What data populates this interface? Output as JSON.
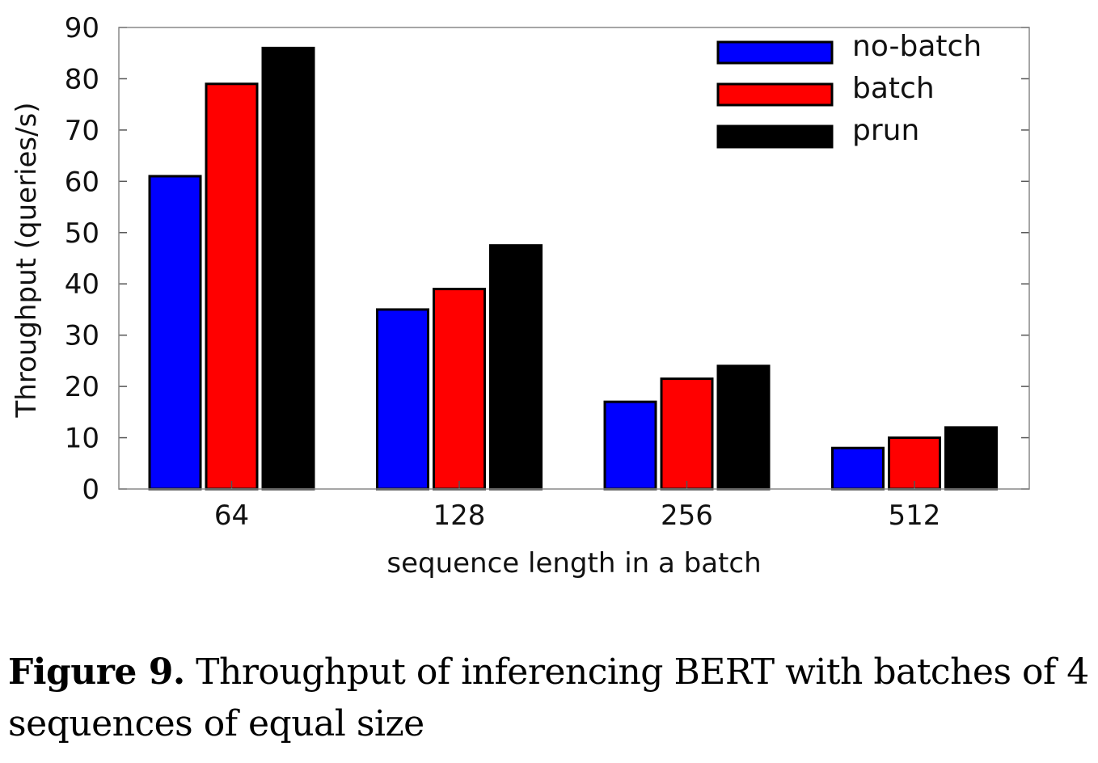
{
  "chart_data": {
    "type": "bar",
    "categories": [
      "64",
      "128",
      "256",
      "512"
    ],
    "series": [
      {
        "name": "no-batch",
        "color": "#0000ff",
        "values": [
          61,
          35,
          17,
          8
        ]
      },
      {
        "name": "batch",
        "color": "#ff0000",
        "values": [
          79,
          39,
          21.5,
          10
        ]
      },
      {
        "name": "prun",
        "color": "#000000",
        "values": [
          86,
          47.5,
          24,
          12
        ]
      }
    ],
    "xlabel": "sequence length in a batch",
    "ylabel": "Throughput (queries/s)",
    "ylim": [
      0,
      90
    ],
    "yticks": [
      0,
      10,
      20,
      30,
      40,
      50,
      60,
      70,
      80,
      90
    ],
    "grid": false,
    "legend_position": "top-right"
  },
  "caption": {
    "lead": "Figure 9.",
    "text": " Throughput of inferencing BERT with batches of 4 sequences of equal size"
  }
}
